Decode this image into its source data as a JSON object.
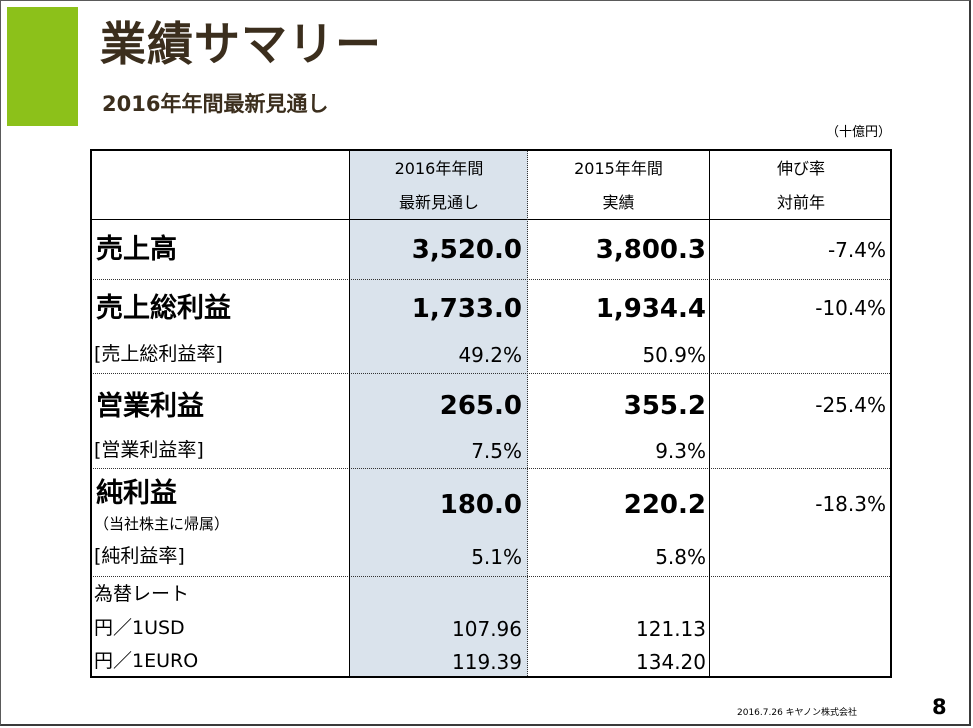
{
  "title": "業績サマリー",
  "subtitle": "2016年年間最新見通し",
  "unit": "（十億円）",
  "headers": {
    "col1_line1": "2016年年間",
    "col1_line2": "最新見通し",
    "col2_line1": "2015年年間",
    "col2_line2": "実績",
    "col3_line1": "伸び率",
    "col3_line2": "対前年"
  },
  "rows": {
    "sales": {
      "label": "売上高",
      "forecast": "3,520.0",
      "actual": "3,800.3",
      "growth": "-7.4%"
    },
    "gross_profit": {
      "label": "売上総利益",
      "forecast": "1,733.0",
      "actual": "1,934.4",
      "growth": "-10.4%",
      "ratio_label": "[売上総利益率]",
      "ratio_forecast": "49.2%",
      "ratio_actual": "50.9%"
    },
    "operating_profit": {
      "label": "営業利益",
      "forecast": "265.0",
      "actual": "355.2",
      "growth": "-25.4%",
      "ratio_label": "[営業利益率]",
      "ratio_forecast": "7.5%",
      "ratio_actual": "9.3%"
    },
    "net_income": {
      "label": "純利益",
      "sublabel": "（当社株主に帰属）",
      "forecast": "180.0",
      "actual": "220.2",
      "growth": "-18.3%",
      "ratio_label": "[純利益率]",
      "ratio_forecast": "5.1%",
      "ratio_actual": "5.8%"
    },
    "fx": {
      "label": "為替レート",
      "usd_label": "円／1USD",
      "usd_forecast": "107.96",
      "usd_actual": "121.13",
      "euro_label": "円／1EURO",
      "euro_forecast": "119.39",
      "euro_actual": "134.20"
    }
  },
  "footer": "2016.7.26 キヤノン株式会社",
  "page_number": "8",
  "colors": {
    "accent": "#8cc11a",
    "title": "#3b2e1d",
    "shade": "#dae3ec"
  }
}
